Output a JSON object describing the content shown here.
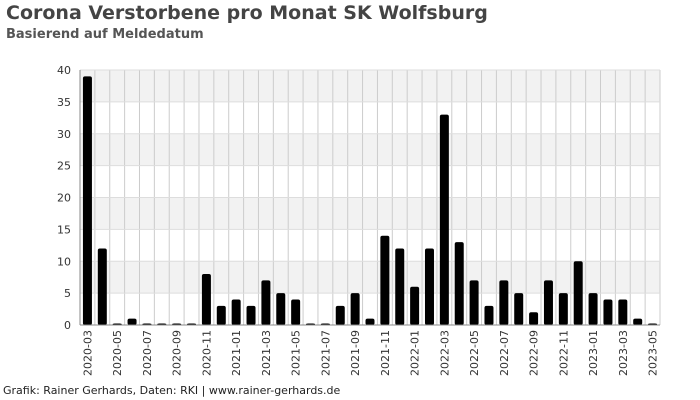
{
  "chart_data": {
    "type": "bar",
    "title": "Corona Verstorbene pro Monat SK Wolfsburg",
    "subtitle": "Basierend auf Meldedatum",
    "categories": [
      "2020-03",
      "2020-04",
      "2020-05",
      "2020-06",
      "2020-07",
      "2020-08",
      "2020-09",
      "2020-10",
      "2020-11",
      "2020-12",
      "2021-01",
      "2021-02",
      "2021-03",
      "2021-04",
      "2021-05",
      "2021-06",
      "2021-07",
      "2021-08",
      "2021-09",
      "2021-10",
      "2021-11",
      "2021-12",
      "2022-01",
      "2022-02",
      "2022-03",
      "2022-04",
      "2022-05",
      "2022-06",
      "2022-07",
      "2022-08",
      "2022-09",
      "2022-10",
      "2022-11",
      "2022-12",
      "2023-01",
      "2023-02",
      "2023-03",
      "2023-04",
      "2023-05"
    ],
    "values": [
      39,
      12,
      0,
      1,
      0,
      0,
      0,
      0,
      8,
      3,
      4,
      3,
      7,
      5,
      4,
      0,
      0,
      3,
      5,
      1,
      14,
      12,
      6,
      12,
      33,
      13,
      7,
      3,
      7,
      5,
      2,
      7,
      5,
      10,
      5,
      4,
      4,
      1,
      0
    ],
    "ylim": [
      0,
      40
    ],
    "yticks": [
      0,
      5,
      10,
      15,
      20,
      25,
      30,
      35,
      40
    ],
    "xlabel": "",
    "ylabel": "",
    "grid": true,
    "bar_color": "#000000"
  },
  "footer": "Grafik: Rainer Gerhards, Daten: RKI | www.rainer-gerhards.de"
}
